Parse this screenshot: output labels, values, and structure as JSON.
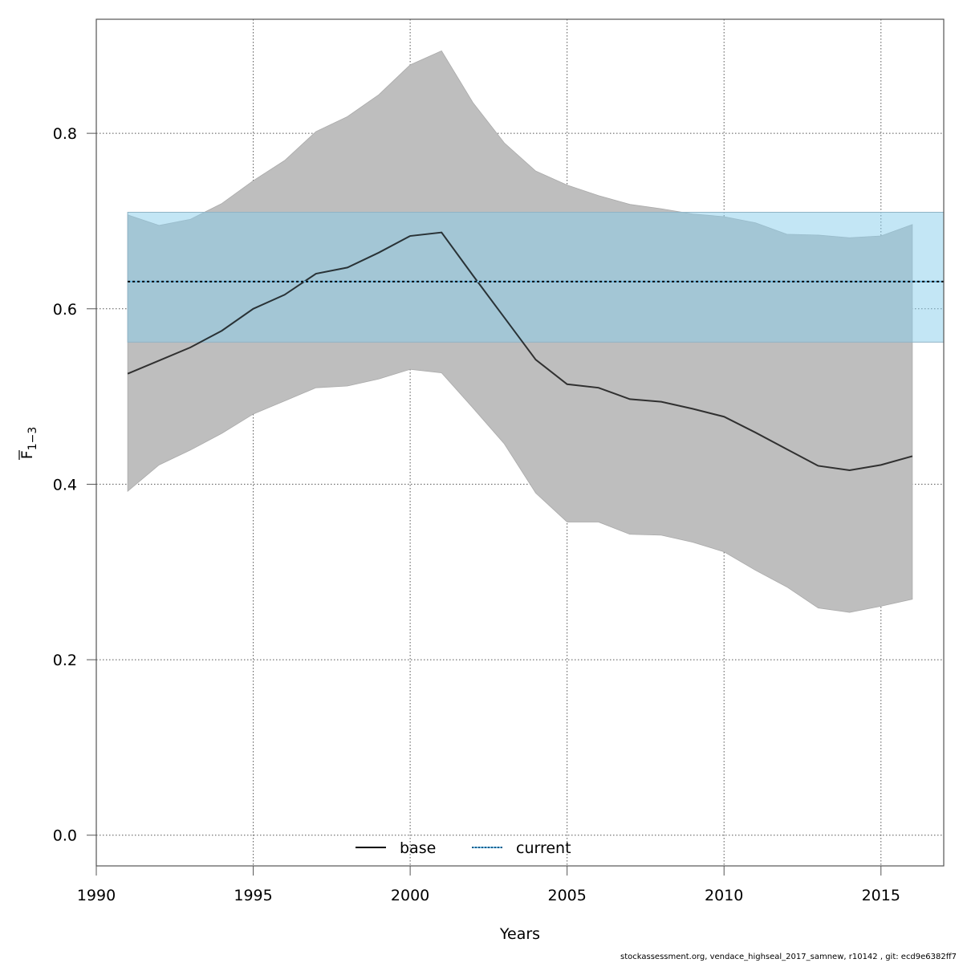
{
  "chart_data": {
    "type": "line",
    "title": "",
    "xlabel": "Years",
    "ylabel": {
      "main": "F",
      "bar": true,
      "subscript": "1−3"
    },
    "xlim": [
      1990,
      2017
    ],
    "ylim": [
      -0.035,
      0.93
    ],
    "grid": true,
    "x_ticks": [
      1990,
      1995,
      2000,
      2005,
      2010,
      2015
    ],
    "y_ticks": [
      0.0,
      0.2,
      0.4,
      0.6,
      0.8
    ],
    "y_tick_labels": [
      "0.0",
      "0.2",
      "0.4",
      "0.6",
      "0.8"
    ],
    "x": [
      1991,
      1992,
      1993,
      1994,
      1995,
      1996,
      1997,
      1998,
      1999,
      2000,
      2001,
      2002,
      2003,
      2004,
      2005,
      2006,
      2007,
      2008,
      2009,
      2010,
      2011,
      2012,
      2013,
      2014,
      2015,
      2016
    ],
    "series": [
      {
        "name": "base",
        "style": "solid",
        "color": "#000000",
        "values": [
          0.526,
          0.541,
          0.556,
          0.575,
          0.6,
          0.616,
          0.64,
          0.647,
          0.664,
          0.683,
          0.687,
          0.638,
          0.59,
          0.542,
          0.514,
          0.51,
          0.497,
          0.494,
          0.486,
          0.477,
          0.459,
          0.44,
          0.421,
          0.416,
          0.422,
          0.432
        ],
        "lower": [
          0.392,
          0.422,
          0.439,
          0.458,
          0.48,
          0.495,
          0.51,
          0.512,
          0.52,
          0.531,
          0.527,
          0.487,
          0.446,
          0.39,
          0.357,
          0.357,
          0.343,
          0.342,
          0.334,
          0.323,
          0.302,
          0.283,
          0.259,
          0.254,
          0.261,
          0.269
        ],
        "upper": [
          0.707,
          0.695,
          0.702,
          0.72,
          0.746,
          0.769,
          0.802,
          0.819,
          0.844,
          0.878,
          0.894,
          0.835,
          0.789,
          0.757,
          0.741,
          0.729,
          0.719,
          0.714,
          0.708,
          0.705,
          0.698,
          0.685,
          0.684,
          0.681,
          0.683,
          0.696
        ],
        "band_color": "#bebebe"
      },
      {
        "name": "current",
        "style": "dotted",
        "color": "#000000",
        "band_color": "#87ceeb",
        "x_range": [
          1991,
          2017
        ],
        "value": 0.631,
        "lower": 0.562,
        "upper": 0.71
      }
    ],
    "legend": {
      "position": "bottom",
      "entries": [
        {
          "label": "base",
          "style": "solid",
          "color": "#000000"
        },
        {
          "label": "current",
          "style": "dotted",
          "color": "#1f5f8b"
        }
      ]
    }
  },
  "footer": "stockassessment.org, vendace_highseal_2017_samnew, r10142 , git: ecd9e6382ff7"
}
